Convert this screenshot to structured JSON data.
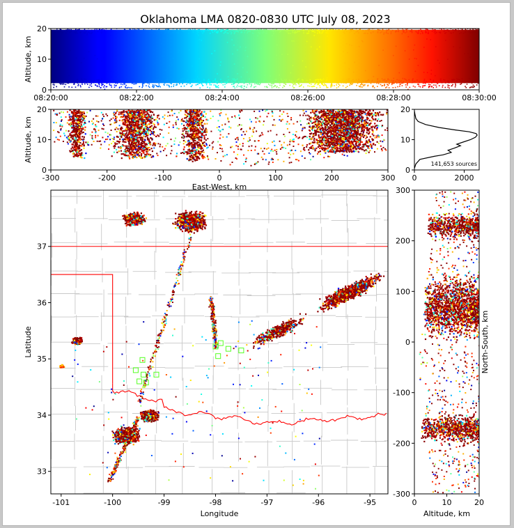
{
  "figure": {
    "title": "Oklahoma LMA 0820-0830 UTC July 08, 2023"
  },
  "chart_data": [
    {
      "id": "time-altitude",
      "type": "scatter",
      "ylabel": "Altitude, km",
      "ylim": [
        0,
        20
      ],
      "yticks": [
        0,
        10,
        20
      ],
      "xlim": [
        "08:20:00",
        "08:30:00"
      ],
      "xticks": [
        "08:20:00",
        "08:22:00",
        "08:24:00",
        "08:26:00",
        "08:28:00",
        "08:30:00"
      ],
      "color_encoding": "time (jet colormap, blue to dark red)",
      "density": "continuous band of sources from about 2 to 20 km throughout the period"
    },
    {
      "id": "east-west-altitude",
      "type": "scatter",
      "xlabel": "East-West, km",
      "ylabel": "Altitude, km",
      "xlim": [
        -300,
        300
      ],
      "xticks": [
        -300,
        -200,
        -100,
        0,
        100,
        200,
        300
      ],
      "ylim": [
        0,
        20
      ],
      "yticks": [
        0,
        10,
        20
      ],
      "clusters_km": [
        {
          "x_center": -255,
          "width": 40,
          "z_range": [
            4,
            20
          ]
        },
        {
          "x_center": -150,
          "width": 90,
          "z_range": [
            4,
            20
          ]
        },
        {
          "x_center": -45,
          "width": 55,
          "z_range": [
            3,
            20
          ]
        },
        {
          "x_center": 215,
          "width": 170,
          "z_range": [
            6,
            20
          ]
        }
      ]
    },
    {
      "id": "altitude-histogram",
      "type": "line",
      "annotation": "141,653 sources",
      "xlim": [
        0,
        2600
      ],
      "xticks": [
        0,
        2000
      ],
      "ylim": [
        0,
        20
      ],
      "yticks": [
        0,
        10,
        20
      ],
      "profile": [
        {
          "alt": 0.5,
          "count": 0
        },
        {
          "alt": 2,
          "count": 60
        },
        {
          "alt": 3.5,
          "count": 220
        },
        {
          "alt": 4.5,
          "count": 800
        },
        {
          "alt": 5,
          "count": 1150
        },
        {
          "alt": 5.8,
          "count": 1480
        },
        {
          "alt": 6.5,
          "count": 1350
        },
        {
          "alt": 7.2,
          "count": 1600
        },
        {
          "alt": 8,
          "count": 1850
        },
        {
          "alt": 8.5,
          "count": 1700
        },
        {
          "alt": 9.2,
          "count": 1950
        },
        {
          "alt": 10,
          "count": 2250
        },
        {
          "alt": 10.8,
          "count": 2450
        },
        {
          "alt": 11.5,
          "count": 2520
        },
        {
          "alt": 12,
          "count": 2480
        },
        {
          "alt": 12.6,
          "count": 2200
        },
        {
          "alt": 13.2,
          "count": 1650
        },
        {
          "alt": 14,
          "count": 1000
        },
        {
          "alt": 15,
          "count": 450
        },
        {
          "alt": 16,
          "count": 150
        },
        {
          "alt": 17,
          "count": 60
        },
        {
          "alt": 18.5,
          "count": 20
        },
        {
          "alt": 19.5,
          "count": 0
        }
      ]
    },
    {
      "id": "plan-view",
      "type": "scatter",
      "xlabel": "Longitude",
      "ylabel": "Latitude",
      "xlim": [
        -101.2,
        -94.65
      ],
      "xticks": [
        -101,
        -100,
        -99,
        -98,
        -97,
        -96,
        -95
      ],
      "ylim": [
        32.6,
        38.0
      ],
      "yticks": [
        33,
        34,
        35,
        36,
        37
      ],
      "clusters": [
        {
          "lon": -98.5,
          "lat": 37.45,
          "spread": 0.35,
          "level": "dense"
        },
        {
          "lon": -99.6,
          "lat": 37.5,
          "spread": 0.25,
          "level": "moderate"
        },
        {
          "lon": -100.7,
          "lat": 35.33,
          "spread": 0.12,
          "level": "moderate"
        },
        {
          "lon": -101.0,
          "lat": 34.88,
          "spread": 0.05,
          "level": "light"
        },
        {
          "lon": -99.75,
          "lat": 33.65,
          "spread": 0.3,
          "level": "dense"
        },
        {
          "lon": -99.3,
          "lat": 34.0,
          "spread": 0.2,
          "level": "dense"
        },
        {
          "lon": -95.4,
          "lat": 36.2,
          "spread": 0.7,
          "level": "dense"
        },
        {
          "lon": -96.8,
          "lat": 35.5,
          "spread": 0.6,
          "level": "moderate"
        }
      ],
      "streams": [
        {
          "from": [
            -98.5,
            37.2
          ],
          "to": [
            -99.5,
            34.2
          ]
        },
        {
          "from": [
            -98.1,
            36.1
          ],
          "to": [
            -98.0,
            35.2
          ]
        },
        {
          "from": [
            -99.5,
            34.0
          ],
          "to": [
            -100.1,
            32.8
          ]
        }
      ],
      "stations": [
        [
          -98.0,
          35.22
        ],
        [
          -97.9,
          35.28
        ],
        [
          -97.95,
          35.05
        ],
        [
          -97.75,
          35.18
        ],
        [
          -97.5,
          35.15
        ],
        [
          -99.42,
          34.98
        ],
        [
          -99.55,
          34.8
        ],
        [
          -99.4,
          34.72
        ],
        [
          -99.15,
          34.72
        ],
        [
          -99.35,
          34.58
        ],
        [
          -99.48,
          34.6
        ]
      ]
    },
    {
      "id": "altitude-north-south",
      "type": "scatter",
      "xlabel": "Altitude, km",
      "ylabel": "North-South, km",
      "xlim": [
        0,
        20
      ],
      "xticks": [
        0,
        10,
        20
      ],
      "ylim": [
        -300,
        300
      ],
      "yticks": [
        -300,
        -200,
        -100,
        0,
        100,
        200,
        300
      ],
      "clusters_km": [
        {
          "y_center": 230,
          "height": 60,
          "alt_range": [
            4,
            20
          ]
        },
        {
          "y_center": 70,
          "height": 150,
          "alt_range": [
            3,
            20
          ]
        },
        {
          "y_center": -170,
          "height": 70,
          "alt_range": [
            2,
            20
          ]
        }
      ]
    }
  ]
}
